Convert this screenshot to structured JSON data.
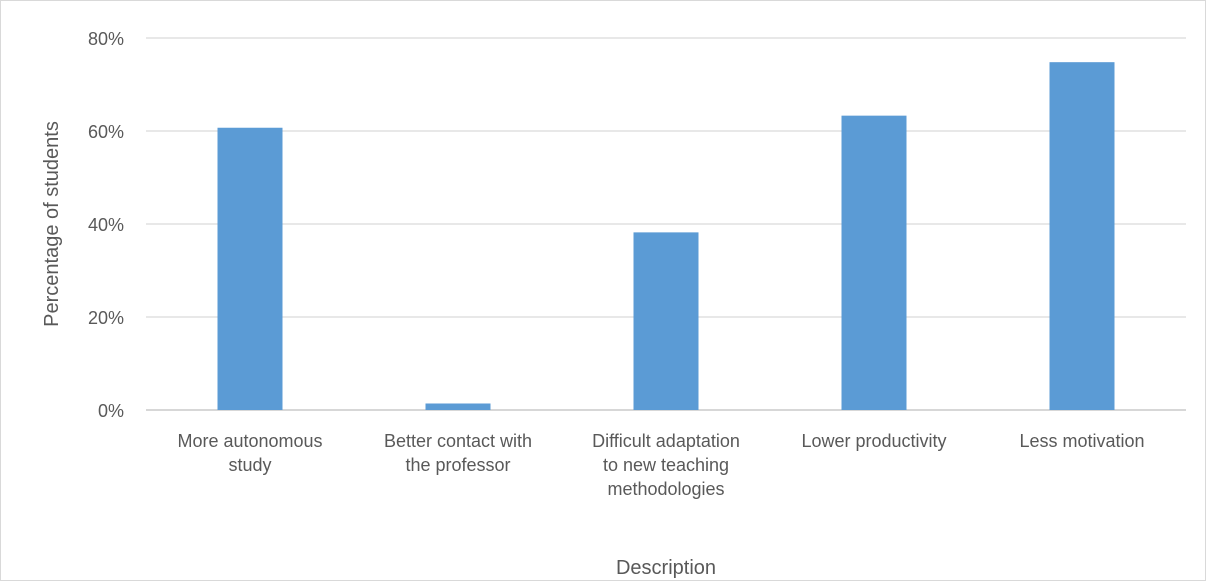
{
  "chart_data": {
    "type": "bar",
    "categories": [
      "More autonomous study",
      "Better contact with the professor",
      "Difficult adaptation to new teaching methodologies",
      "Lower productivity",
      "Less motivation"
    ],
    "category_label_lines": [
      [
        "More autonomous",
        "study"
      ],
      [
        "Better contact with",
        "the professor"
      ],
      [
        "Difficult adaptation",
        "to new teaching",
        "methodologies"
      ],
      [
        "Lower productivity"
      ],
      [
        "Less motivation"
      ]
    ],
    "values": [
      60.7,
      1.4,
      38.2,
      63.3,
      74.8
    ],
    "unit": "%",
    "ylim": [
      0,
      80
    ],
    "yticks": [
      "0%",
      "20%",
      "40%",
      "60%",
      "80%"
    ],
    "xlabel": "Description",
    "ylabel": "Percentage of students",
    "title": "",
    "grid": true,
    "legend": "none",
    "colors": {
      "bar": "#5b9bd5",
      "grid": "#d9d9d9",
      "axis": "#bfbfbf",
      "text": "#595959"
    }
  }
}
